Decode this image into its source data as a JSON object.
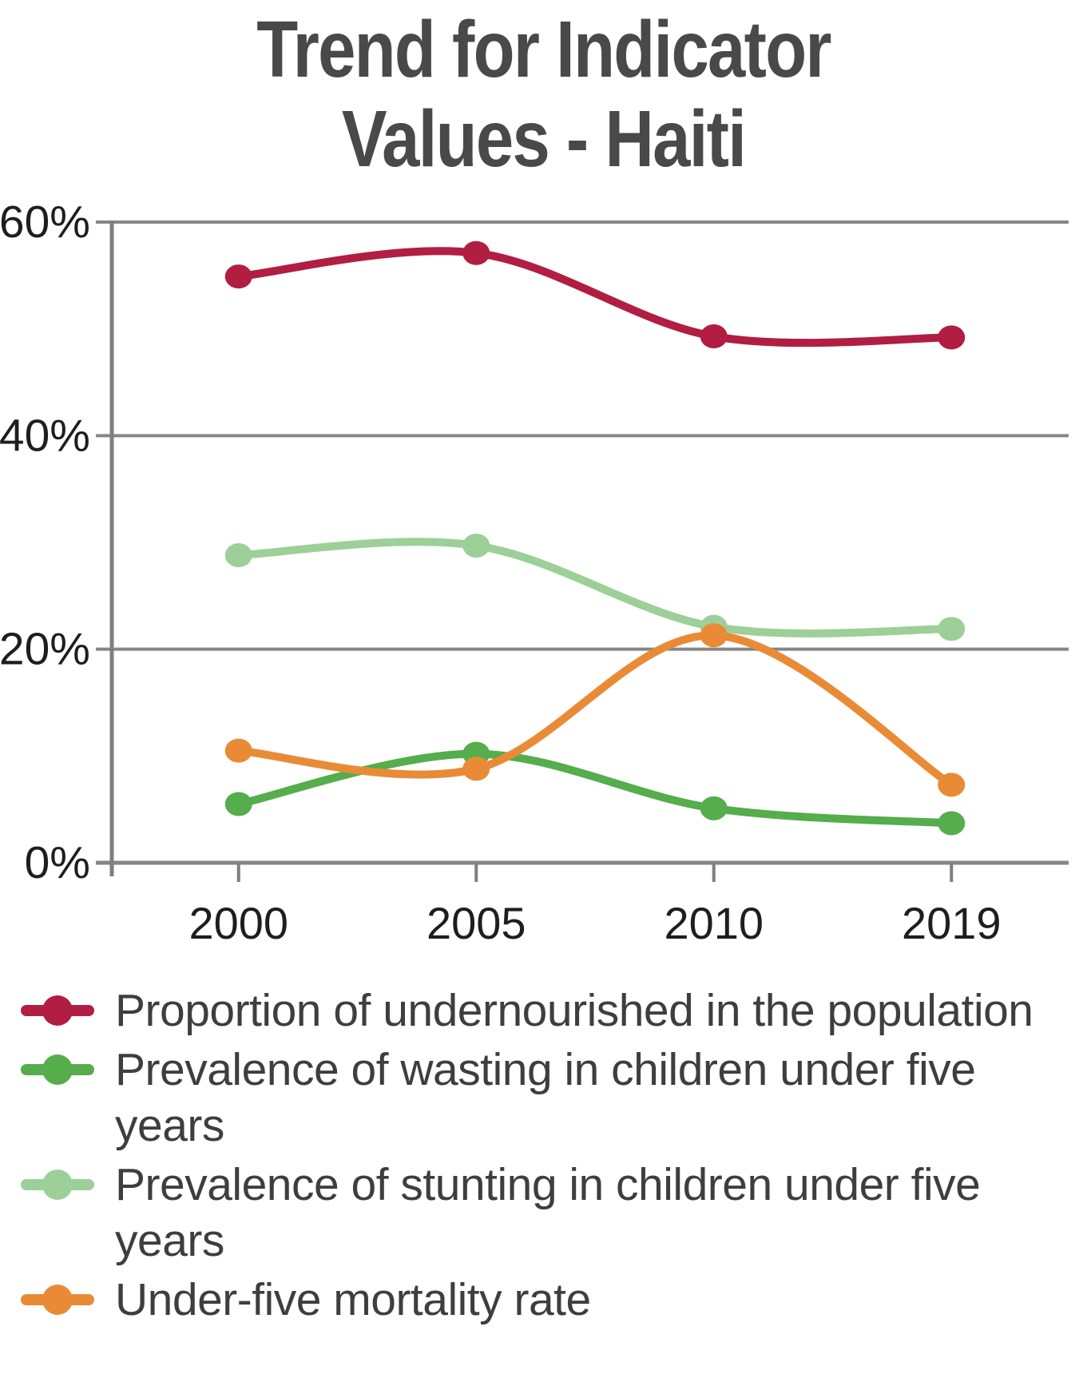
{
  "title_lines": [
    "Trend for Indicator",
    "Values - Haiti"
  ],
  "chart_data": {
    "type": "line",
    "title": "Trend for Indicator Values - Haiti",
    "x": [
      2000,
      2005,
      2010,
      2019
    ],
    "x_labels": [
      "2000",
      "2005",
      "2010",
      "2019"
    ],
    "y_ticks": [
      {
        "value": 60,
        "label": "60%"
      },
      {
        "value": 40,
        "label": "40%"
      },
      {
        "value": 20,
        "label": "20%"
      },
      {
        "value": 0,
        "label": "0%"
      }
    ],
    "ylim": [
      0,
      60
    ],
    "grid": true,
    "legend_position": "bottom",
    "series": [
      {
        "name": "Proportion of undernourished in the population",
        "slug": "undernourished",
        "color": "#b11e42",
        "values": [
          54.9,
          57.1,
          49.3,
          49.2
        ]
      },
      {
        "name": "Prevalence of wasting in children under five years",
        "slug": "wasting",
        "color": "#55ad4b",
        "values": [
          5.5,
          10.2,
          5.1,
          3.7
        ]
      },
      {
        "name": "Prevalence of stunting in children under five years",
        "slug": "stunting",
        "color": "#9dcf99",
        "values": [
          28.8,
          29.7,
          22.1,
          21.9
        ]
      },
      {
        "name": "Under-five mortality rate",
        "slug": "under-five-mortality",
        "color": "#e98b36",
        "values": [
          10.5,
          8.8,
          21.3,
          7.3
        ]
      }
    ]
  },
  "colors": {
    "title": "#494949",
    "axis_text": "#1e1e1e",
    "legend_text": "#3e3e3e",
    "grid": "#868686",
    "axis_line": "#7f7f7f",
    "background": "#ffffff"
  }
}
